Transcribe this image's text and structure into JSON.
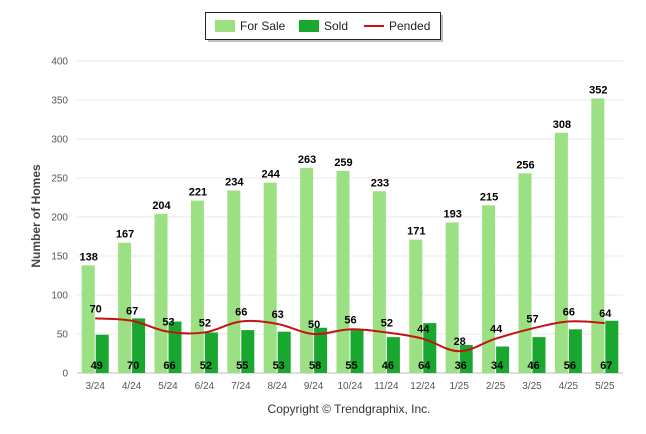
{
  "chart_data": {
    "type": "bar",
    "categories": [
      "3/24",
      "4/24",
      "5/24",
      "6/24",
      "7/24",
      "8/24",
      "9/24",
      "10/24",
      "11/24",
      "12/24",
      "1/25",
      "2/25",
      "3/25",
      "4/25",
      "5/25"
    ],
    "series": [
      {
        "name": "For Sale",
        "kind": "bar",
        "color": "#9BE083",
        "values": [
          138,
          167,
          204,
          221,
          234,
          244,
          263,
          259,
          233,
          171,
          193,
          215,
          256,
          308,
          352
        ]
      },
      {
        "name": "Sold",
        "kind": "bar",
        "color": "#19A82F",
        "values": [
          49,
          70,
          66,
          52,
          55,
          53,
          58,
          55,
          46,
          64,
          36,
          34,
          46,
          56,
          67
        ]
      },
      {
        "name": "Pended",
        "kind": "line",
        "color": "#C21414",
        "values": [
          70,
          67,
          53,
          52,
          66,
          63,
          50,
          56,
          52,
          44,
          28,
          44,
          57,
          66,
          64
        ]
      }
    ],
    "ylabel": "Number of Homes",
    "xlabel": "",
    "ylim": [
      0,
      400
    ],
    "yticks": [
      0,
      50,
      100,
      150,
      200,
      250,
      300,
      350,
      400
    ],
    "grid": true,
    "legend_position": "top-center",
    "credit": "Copyright © Trendgraphix, Inc."
  }
}
